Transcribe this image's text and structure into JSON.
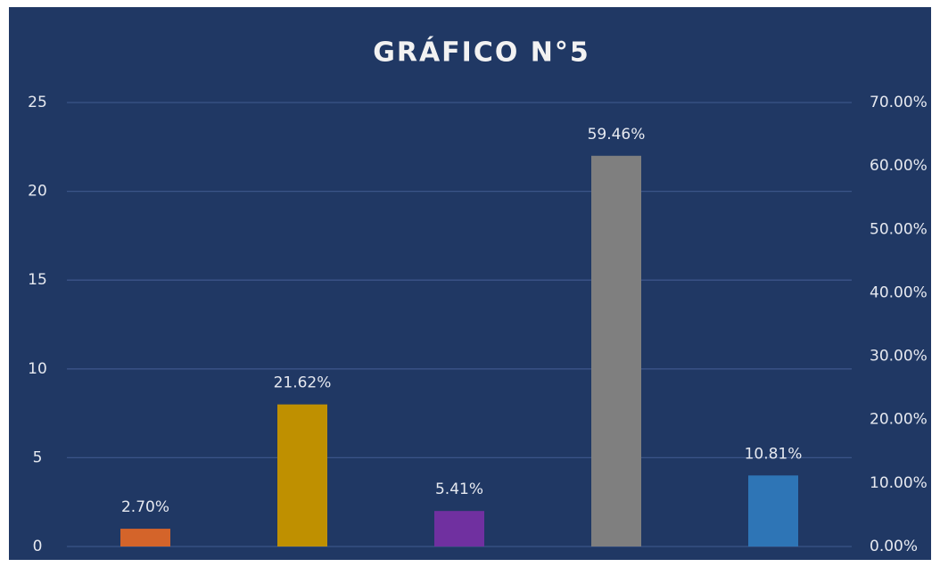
{
  "chart_data": {
    "type": "bar",
    "title": "GRÁFICO N°5",
    "categories": [
      null,
      null,
      null,
      null,
      null
    ],
    "values": [
      1,
      8,
      2,
      22,
      4
    ],
    "percent_labels": [
      "2.70%",
      "21.62%",
      "5.41%",
      "59.46%",
      "10.81%"
    ],
    "colors": [
      "#d4642a",
      "#bf9000",
      "#7030a0",
      "#7f7f7f",
      "#2e75b6"
    ],
    "ylim": [
      0,
      25
    ],
    "yticks": [
      0,
      5,
      10,
      15,
      20,
      25
    ],
    "y2lim": [
      0,
      70
    ],
    "y2ticks": [
      {
        "value": 0,
        "label": "0.00%"
      },
      {
        "value": 10,
        "label": "10.00%"
      },
      {
        "value": 20,
        "label": "20.00%"
      },
      {
        "value": 30,
        "label": "30.00%"
      },
      {
        "value": 40,
        "label": "40.00%"
      },
      {
        "value": 50,
        "label": "50.00%"
      },
      {
        "value": 60,
        "label": "60.00%"
      },
      {
        "value": 70,
        "label": "70.00%"
      }
    ],
    "grid": true
  }
}
